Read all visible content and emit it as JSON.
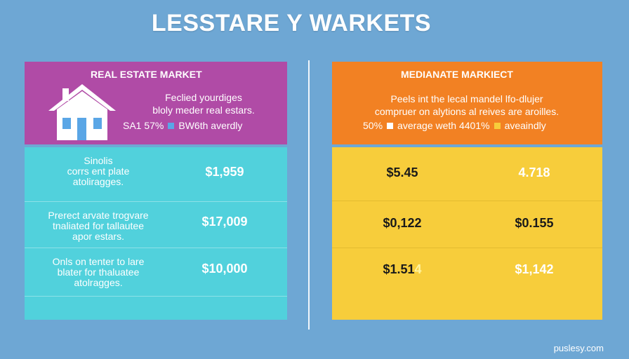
{
  "title": "LESSTARE Y WARKETS",
  "left_panel": {
    "header": "REAL ESTATE MARKET",
    "description": [
      "Feclied yourdiges",
      "bloly meder real estars."
    ],
    "legend": {
      "prefix": "SA1  57%",
      "label": "BW6th averdly",
      "swatch_color": "#5aa6e6"
    },
    "rows": [
      {
        "label": [
          "Sinolis",
          "corrs ent plate",
          "atoliragges."
        ],
        "value": "$1,959"
      },
      {
        "label": [
          "Prerect arvate trogvare",
          "tnaliated for tallautee",
          "apor estars."
        ],
        "value": "$17,009"
      },
      {
        "label": [
          "Onls on tenter to lare",
          "blater for thaluatee",
          "atolragges."
        ],
        "value": "$10,000"
      }
    ]
  },
  "right_panel": {
    "header": "MEDIANATE MARKIECT",
    "description": [
      "Peels int the lecal mandel lfo-dlujer",
      "compruer on alytions al reives are aroilles."
    ],
    "legend": {
      "first": "50%",
      "first_swatch": "#ffffff",
      "middle": "average weth 4401%",
      "second_swatch": "#f7cd3b",
      "last": "aveaindly"
    },
    "rows": [
      {
        "a": "$5.45",
        "b": "4.718"
      },
      {
        "a": "$0,122",
        "b": "$0.155"
      },
      {
        "a_main": "$1.51",
        "a_highlight": "4",
        "b": "$1,142"
      }
    ]
  },
  "footer": "puslesy.com",
  "colors": {
    "background": "#6ea7d4",
    "left_header": "#b04ba6",
    "left_body": "#51d1dc",
    "right_header": "#f28123",
    "right_body": "#f7cd3b"
  }
}
